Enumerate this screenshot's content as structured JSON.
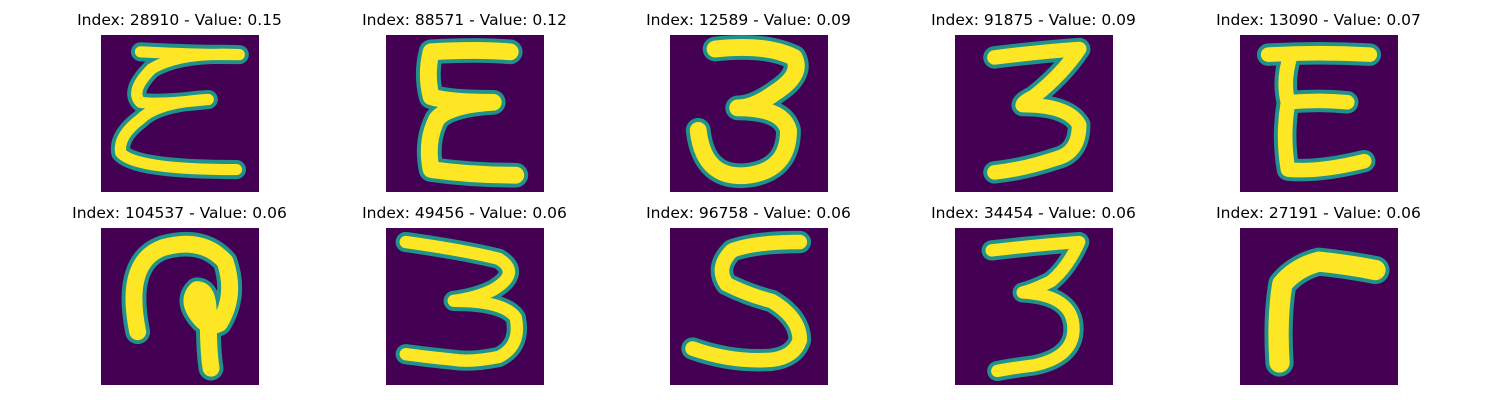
{
  "panels": [
    {
      "title": "Index: 28910 - Value: 0.15",
      "index": 28910,
      "value": 0.15,
      "glyph": "E"
    },
    {
      "title": "Index: 88571 - Value: 0.12",
      "index": 88571,
      "value": 0.12,
      "glyph": "Σ"
    },
    {
      "title": "Index: 12589 - Value: 0.09",
      "index": 12589,
      "value": 0.09,
      "glyph": "3"
    },
    {
      "title": "Index: 91875 - Value: 0.09",
      "index": 91875,
      "value": 0.09,
      "glyph": "3"
    },
    {
      "title": "Index: 13090 - Value: 0.07",
      "index": 13090,
      "value": 0.07,
      "glyph": "E"
    },
    {
      "title": "Index: 104537 - Value: 0.06",
      "index": 104537,
      "value": 0.06,
      "glyph": "?"
    },
    {
      "title": "Index: 49456 - Value: 0.06",
      "index": 49456,
      "value": 0.06,
      "glyph": "3"
    },
    {
      "title": "Index: 96758 - Value: 0.06",
      "index": 96758,
      "value": 0.06,
      "glyph": "S"
    },
    {
      "title": "Index: 34454 - Value: 0.06",
      "index": 34454,
      "value": 0.06,
      "glyph": "3"
    },
    {
      "title": "Index: 27191 - Value: 0.06",
      "index": 27191,
      "value": 0.06,
      "glyph": "r"
    }
  ],
  "colors": {
    "background": "#440154",
    "mid": "#21918c",
    "stroke": "#fde725",
    "title_text": "#000000"
  }
}
